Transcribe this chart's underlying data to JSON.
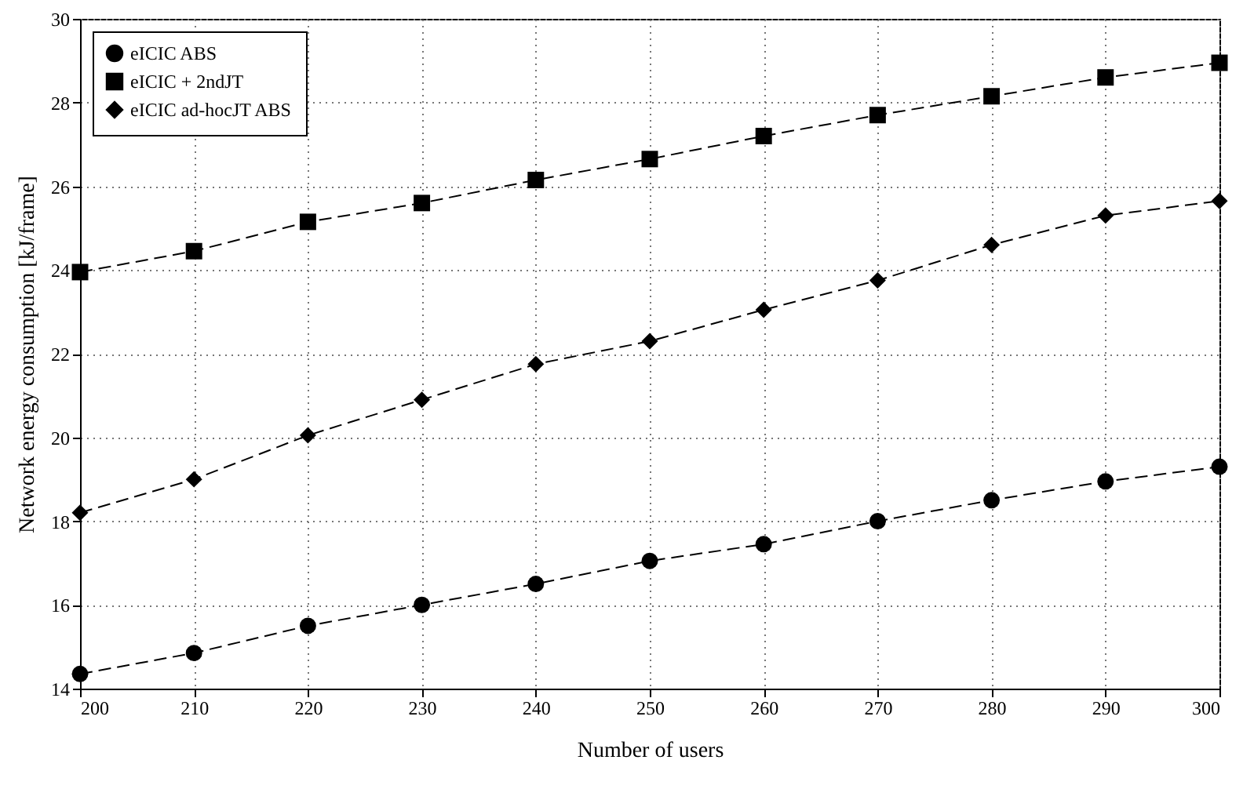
{
  "chart_data": {
    "type": "line",
    "xlabel": "Number of users",
    "ylabel": "Network energy consumption [kJ/frame]",
    "x": [
      200,
      210,
      220,
      230,
      240,
      250,
      260,
      270,
      280,
      290,
      300
    ],
    "series": [
      {
        "name": "eICIC ABS",
        "color": "#000000",
        "marker": "circle",
        "values": [
          14.35,
          14.85,
          15.5,
          16.0,
          16.5,
          17.05,
          17.45,
          18.0,
          18.5,
          18.95,
          19.3
        ]
      },
      {
        "name": "eICIC + 2ndJT",
        "color": "#000000",
        "marker": "square",
        "values": [
          23.95,
          24.45,
          25.15,
          25.6,
          26.15,
          26.65,
          27.2,
          27.7,
          28.15,
          28.6,
          28.95
        ]
      },
      {
        "name": "eICIC ad-hocJT ABS",
        "color": "#000000",
        "marker": "diamond",
        "values": [
          18.2,
          19.0,
          20.05,
          20.9,
          21.75,
          22.3,
          23.05,
          23.75,
          24.6,
          25.3,
          25.65
        ]
      }
    ],
    "xlim": [
      200,
      300
    ],
    "xticks": [
      200,
      210,
      220,
      230,
      240,
      250,
      260,
      270,
      280,
      290,
      300
    ],
    "ylim": [
      14,
      30
    ],
    "yticks": [
      14,
      16,
      18,
      20,
      22,
      24,
      26,
      28,
      30
    ],
    "grid": true,
    "legend": "top left",
    "line_style": "dashed"
  }
}
